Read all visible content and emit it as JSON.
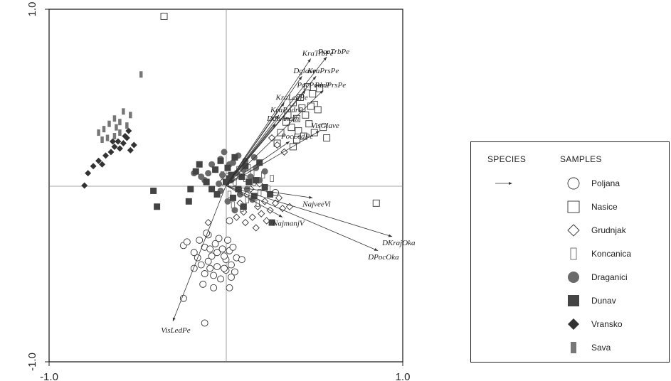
{
  "chart_data": {
    "type": "scatter",
    "xlim": [
      -1.0,
      1.0
    ],
    "ylim": [
      -1.0,
      1.0
    ],
    "xticks": [
      "-1.0",
      "1.0"
    ],
    "yticks": [
      "1.0",
      "-1.0"
    ],
    "reference_lines": [
      0,
      0
    ],
    "legend": {
      "position": "right",
      "species_header": "SPECIES",
      "samples_header": "SAMPLES"
    },
    "vectors": [
      {
        "label": "KraTrbPe",
        "x": 0.48,
        "y": 0.72
      },
      {
        "label": "PocTrbPe",
        "x": 0.57,
        "y": 0.73
      },
      {
        "label": "Dglave",
        "x": 0.43,
        "y": 0.62
      },
      {
        "label": "KraPrsPe",
        "x": 0.51,
        "y": 0.62
      },
      {
        "label": "PocPodrP",
        "x": 0.45,
        "y": 0.54
      },
      {
        "label": "PocPrsPe",
        "x": 0.55,
        "y": 0.54
      },
      {
        "label": "KraLedPe",
        "x": 0.33,
        "y": 0.47
      },
      {
        "label": "KraPodrP",
        "x": 0.3,
        "y": 0.4
      },
      {
        "label": "DdoAnaln",
        "x": 0.28,
        "y": 0.35
      },
      {
        "label": "VisGlave",
        "x": 0.53,
        "y": 0.31
      },
      {
        "label": "PocLedPe",
        "x": 0.36,
        "y": 0.25
      },
      {
        "label": "NajveeVi",
        "x": 0.49,
        "y": -0.07
      },
      {
        "label": "NajmanjV",
        "x": 0.32,
        "y": -0.18
      },
      {
        "label": "DKrajOka",
        "x": 0.94,
        "y": -0.29
      },
      {
        "label": "DPocOka",
        "x": 0.86,
        "y": -0.37
      },
      {
        "label": "VisLedPe",
        "x": -0.3,
        "y": -0.77
      }
    ],
    "series": [
      {
        "name": "Poljana",
        "marker": "circle-open",
        "color": "#333333",
        "points": [
          [
            -0.24,
            -0.34
          ],
          [
            -0.18,
            -0.38
          ],
          [
            -0.15,
            -0.31
          ],
          [
            -0.12,
            -0.35
          ],
          [
            -0.1,
            -0.28
          ],
          [
            -0.08,
            -0.4
          ],
          [
            -0.06,
            -0.33
          ],
          [
            -0.04,
            -0.3
          ],
          [
            -0.02,
            -0.36
          ],
          [
            0.0,
            -0.42
          ],
          [
            0.02,
            -0.37
          ],
          [
            0.04,
            -0.35
          ],
          [
            0.06,
            -0.41
          ],
          [
            0.09,
            -0.42
          ],
          [
            -0.14,
            -0.45
          ],
          [
            -0.12,
            -0.5
          ],
          [
            -0.1,
            -0.43
          ],
          [
            -0.07,
            -0.51
          ],
          [
            -0.05,
            -0.46
          ],
          [
            -0.03,
            -0.53
          ],
          [
            0.0,
            -0.48
          ],
          [
            0.03,
            -0.45
          ],
          [
            0.05,
            -0.49
          ],
          [
            -0.22,
            -0.32
          ],
          [
            -0.16,
            -0.41
          ],
          [
            -0.09,
            -0.47
          ],
          [
            -0.01,
            -0.4
          ],
          [
            0.01,
            -0.31
          ],
          [
            -0.07,
            -0.58
          ],
          [
            -0.13,
            -0.56
          ],
          [
            0.02,
            -0.58
          ],
          [
            -0.24,
            -0.64
          ],
          [
            -0.12,
            -0.78
          ],
          [
            -0.11,
            -0.27
          ],
          [
            -0.05,
            -0.38
          ],
          [
            0.03,
            -0.52
          ],
          [
            -0.18,
            -0.47
          ],
          [
            -0.09,
            -0.36
          ],
          [
            -0.01,
            -0.47
          ],
          [
            0.28,
            -0.04
          ],
          [
            0.02,
            -0.2
          ]
        ]
      },
      {
        "name": "Nasice",
        "marker": "square-open",
        "color": "#333333",
        "points": [
          [
            -0.35,
            0.96
          ],
          [
            0.85,
            -0.1
          ],
          [
            0.57,
            0.27
          ],
          [
            0.46,
            0.56
          ],
          [
            0.49,
            0.52
          ],
          [
            0.53,
            0.55
          ],
          [
            0.38,
            0.47
          ],
          [
            0.43,
            0.44
          ],
          [
            0.5,
            0.46
          ],
          [
            0.35,
            0.4
          ],
          [
            0.4,
            0.38
          ],
          [
            0.45,
            0.4
          ],
          [
            0.52,
            0.43
          ],
          [
            0.37,
            0.33
          ],
          [
            0.41,
            0.31
          ],
          [
            0.47,
            0.35
          ],
          [
            0.5,
            0.3
          ],
          [
            0.31,
            0.3
          ],
          [
            0.4,
            0.26
          ],
          [
            0.44,
            0.28
          ],
          [
            0.38,
            0.22
          ],
          [
            0.29,
            0.24
          ],
          [
            0.34,
            0.36
          ],
          [
            0.55,
            0.33
          ],
          [
            0.42,
            0.5
          ],
          [
            0.48,
            0.45
          ]
        ]
      },
      {
        "name": "Grudnjak",
        "marker": "diamond-open",
        "color": "#333333",
        "points": [
          [
            0.12,
            -0.05
          ],
          [
            0.18,
            -0.12
          ],
          [
            0.22,
            -0.09
          ],
          [
            0.1,
            -0.15
          ],
          [
            0.15,
            -0.18
          ],
          [
            0.2,
            -0.16
          ],
          [
            0.25,
            -0.14
          ],
          [
            0.08,
            -0.1
          ],
          [
            0.14,
            -0.02
          ],
          [
            0.28,
            -0.1
          ],
          [
            0.06,
            -0.18
          ],
          [
            0.23,
            -0.2
          ],
          [
            0.3,
            -0.07
          ],
          [
            0.32,
            -0.13
          ],
          [
            0.36,
            -0.12
          ],
          [
            0.17,
            -0.24
          ],
          [
            0.29,
            0.23
          ],
          [
            0.33,
            0.19
          ],
          [
            0.26,
            0.27
          ],
          [
            -0.02,
            0.02
          ],
          [
            0.05,
            0.05
          ],
          [
            -0.1,
            -0.21
          ],
          [
            0.19,
            0.01
          ],
          [
            0.11,
            -0.21
          ]
        ]
      },
      {
        "name": "Koncanica",
        "marker": "bar-open",
        "color": "#555555",
        "points": [
          [
            0.05,
            0.02
          ],
          [
            0.08,
            -0.03
          ],
          [
            0.11,
            0.04
          ],
          [
            0.14,
            -0.06
          ],
          [
            0.02,
            -0.05
          ],
          [
            0.16,
            0.02
          ],
          [
            0.19,
            -0.04
          ],
          [
            0.07,
            0.09
          ],
          [
            0.13,
            0.1
          ],
          [
            0.04,
            -0.11
          ],
          [
            0.21,
            0.06
          ],
          [
            0.09,
            -0.13
          ],
          [
            0.18,
            -0.1
          ],
          [
            0.24,
            -0.02
          ],
          [
            0.01,
            0.05
          ],
          [
            0.12,
            -0.08
          ],
          [
            -0.02,
            0.06
          ],
          [
            0.15,
            0.07
          ],
          [
            0.26,
            0.04
          ]
        ]
      },
      {
        "name": "Draganici",
        "marker": "circle-filled",
        "color": "#6a6a6a",
        "points": [
          [
            -0.18,
            0.07
          ],
          [
            -0.14,
            0.05
          ],
          [
            -0.1,
            0.07
          ],
          [
            -0.06,
            0.09
          ],
          [
            -0.02,
            0.06
          ],
          [
            0.02,
            0.12
          ],
          [
            -0.04,
            0.01
          ],
          [
            0.03,
            0.03
          ],
          [
            0.06,
            0.07
          ],
          [
            0.1,
            0.09
          ],
          [
            0.14,
            0.05
          ],
          [
            0.04,
            0.13
          ],
          [
            -0.08,
            0.12
          ],
          [
            0.12,
            -0.02
          ],
          [
            0.17,
            0.1
          ],
          [
            0.19,
            0.03
          ],
          [
            0.08,
            -0.05
          ],
          [
            0.01,
            -0.09
          ],
          [
            -0.03,
            -0.03
          ],
          [
            0.15,
            -0.08
          ],
          [
            0.05,
            -0.14
          ],
          [
            0.22,
            0.08
          ],
          [
            0.11,
            0.14
          ],
          [
            -0.12,
            0.03
          ],
          [
            0.07,
            0.17
          ],
          [
            0.16,
            0.16
          ],
          [
            -0.01,
            0.19
          ],
          [
            -0.03,
            0.15
          ]
        ]
      },
      {
        "name": "Dunav",
        "marker": "square-filled",
        "color": "#444444",
        "points": [
          [
            -0.41,
            -0.03
          ],
          [
            -0.39,
            -0.12
          ],
          [
            -0.21,
            -0.09
          ],
          [
            -0.17,
            0.08
          ],
          [
            -0.15,
            0.12
          ],
          [
            -0.11,
            0.02
          ],
          [
            -0.08,
            -0.02
          ],
          [
            -0.06,
            0.09
          ],
          [
            -0.03,
            0.14
          ],
          [
            0.01,
            0.1
          ],
          [
            0.05,
            0.16
          ],
          [
            0.09,
            0.05
          ],
          [
            0.13,
            0.02
          ],
          [
            0.17,
            0.03
          ],
          [
            0.19,
            0.13
          ],
          [
            0.11,
            0.11
          ],
          [
            0.03,
            0.06
          ],
          [
            0.07,
            -0.02
          ],
          [
            -0.2,
            -0.02
          ],
          [
            0.04,
            -0.07
          ],
          [
            0.16,
            -0.06
          ],
          [
            0.25,
            -0.05
          ],
          [
            0.22,
            -0.01
          ],
          [
            0.0,
            0.02
          ],
          [
            -0.05,
            -0.05
          ],
          [
            0.1,
            -0.12
          ],
          [
            0.26,
            -0.21
          ],
          [
            0.02,
            0.04
          ]
        ]
      },
      {
        "name": "Vransko",
        "marker": "diamond-filled",
        "color": "#333333",
        "points": [
          [
            -0.8,
            0.0
          ],
          [
            -0.78,
            0.07
          ],
          [
            -0.75,
            0.11
          ],
          [
            -0.72,
            0.14
          ],
          [
            -0.7,
            0.12
          ],
          [
            -0.68,
            0.17
          ],
          [
            -0.65,
            0.19
          ],
          [
            -0.63,
            0.22
          ],
          [
            -0.61,
            0.25
          ],
          [
            -0.58,
            0.24
          ],
          [
            -0.56,
            0.27
          ],
          [
            -0.54,
            0.2
          ],
          [
            -0.52,
            0.23
          ],
          [
            -0.57,
            0.28
          ],
          [
            -0.55,
            0.31
          ],
          [
            -0.6,
            0.21
          ],
          [
            -0.64,
            0.25
          ]
        ]
      },
      {
        "name": "Sava",
        "marker": "bar-filled",
        "color": "#777777",
        "points": [
          [
            -0.48,
            0.63
          ],
          [
            -0.72,
            0.3
          ],
          [
            -0.69,
            0.32
          ],
          [
            -0.66,
            0.35
          ],
          [
            -0.63,
            0.38
          ],
          [
            -0.6,
            0.36
          ],
          [
            -0.58,
            0.42
          ],
          [
            -0.6,
            0.3
          ],
          [
            -0.63,
            0.28
          ],
          [
            -0.56,
            0.34
          ],
          [
            -0.54,
            0.4
          ],
          [
            -0.67,
            0.27
          ],
          [
            -0.7,
            0.26
          ],
          [
            -0.62,
            0.33
          ]
        ]
      }
    ]
  }
}
